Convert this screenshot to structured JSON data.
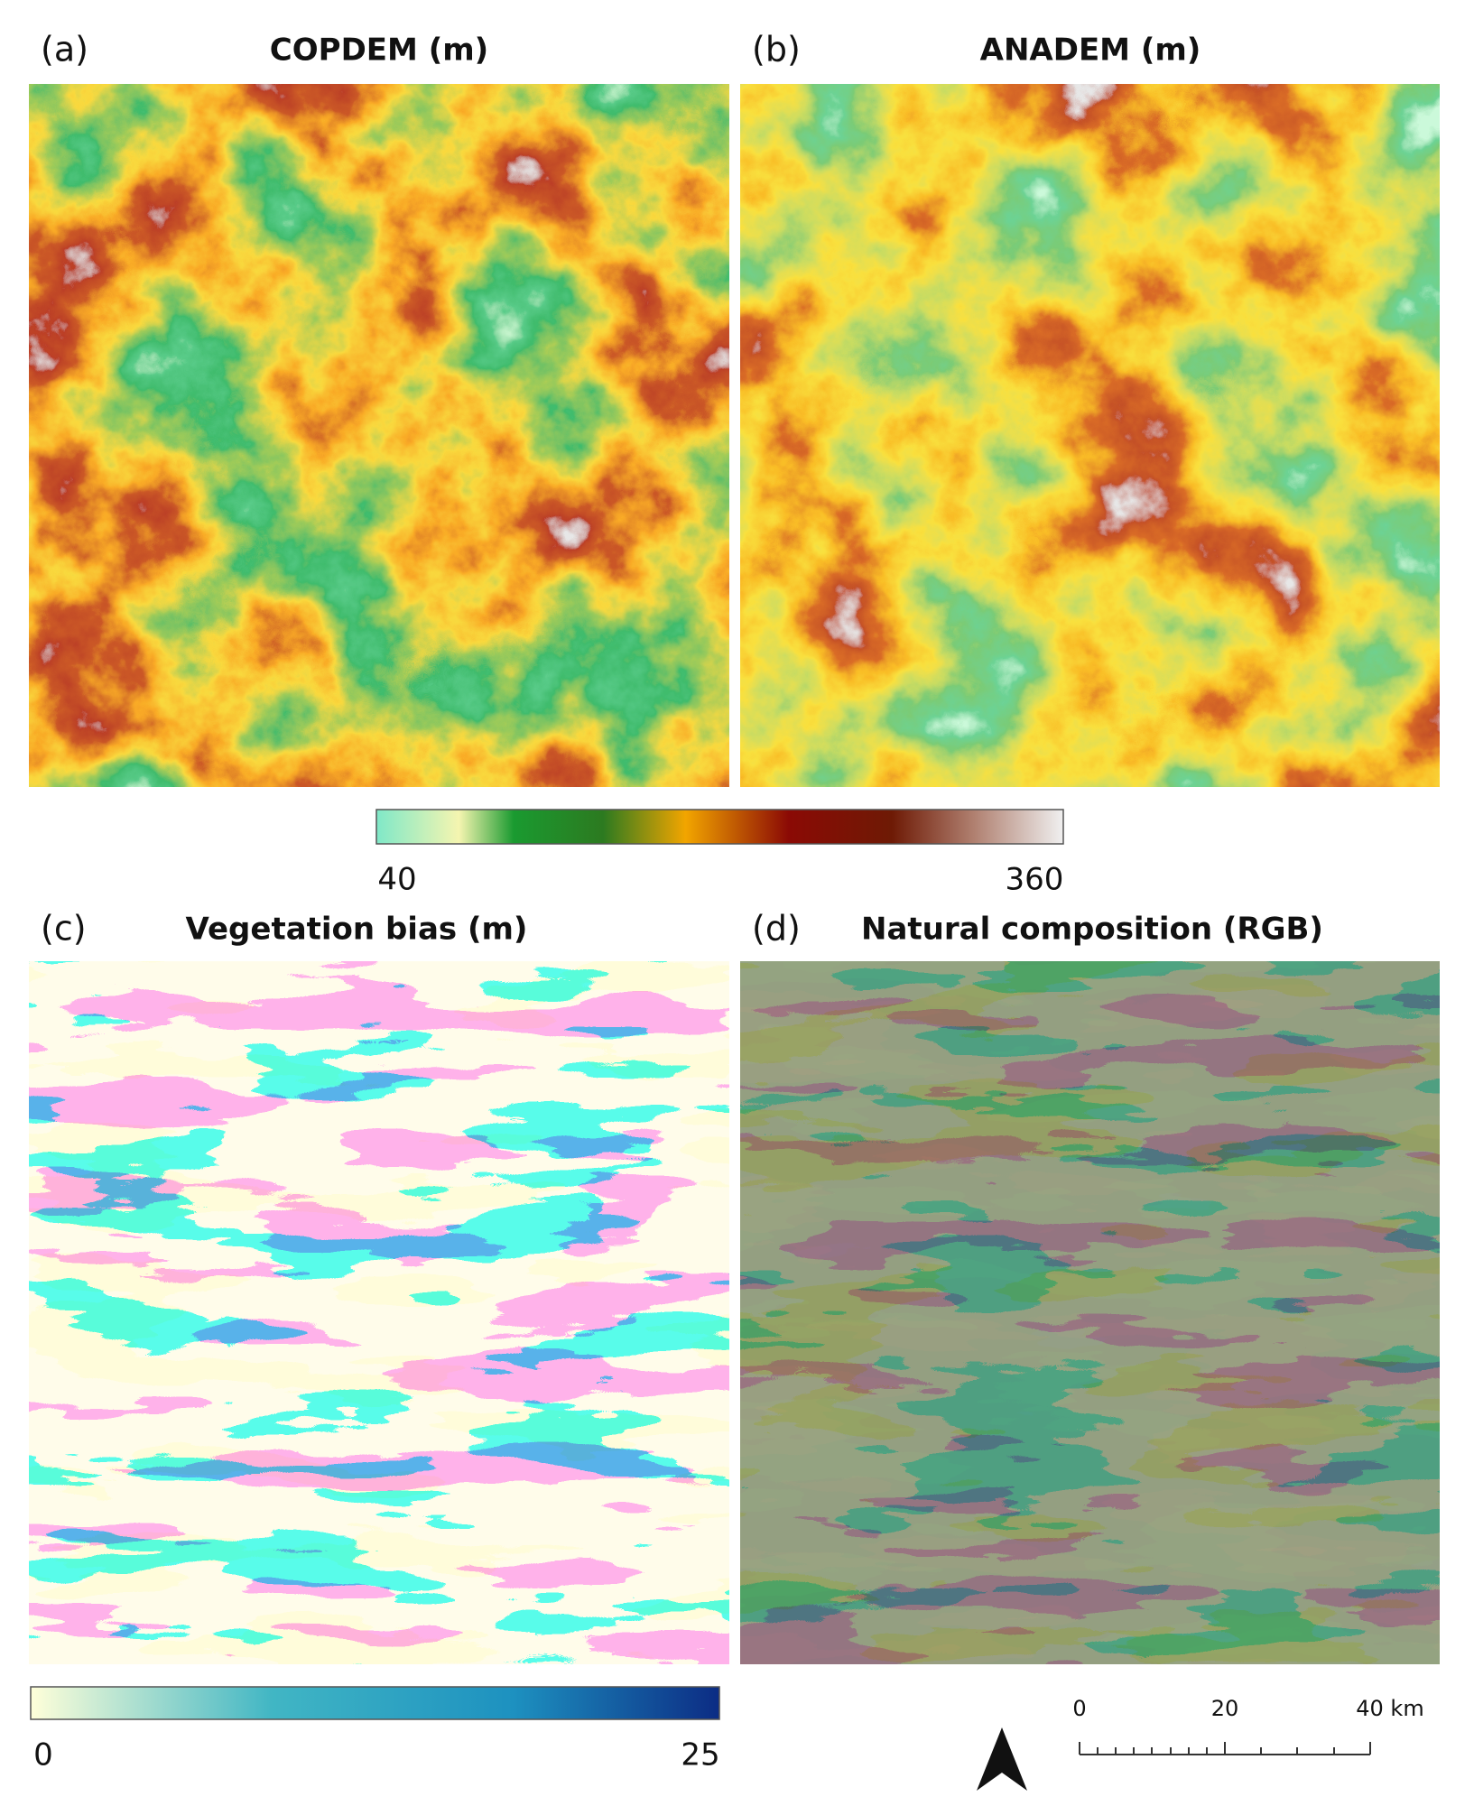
{
  "panels": [
    {
      "label": "(a)",
      "title": "COPDEM (m)"
    },
    {
      "label": "(b)",
      "title": "ANADEM (m)"
    },
    {
      "label": "(c)",
      "title": "Vegetation bias (m)"
    },
    {
      "label": "(d)",
      "title": "Natural composition (RGB)"
    }
  ],
  "elevation_colorbar": {
    "min": 40,
    "max": 360
  },
  "bias_colorbar": {
    "min": 0,
    "max": 25
  },
  "scale_bar": {
    "labels": [
      0,
      20,
      "40 km"
    ]
  }
}
